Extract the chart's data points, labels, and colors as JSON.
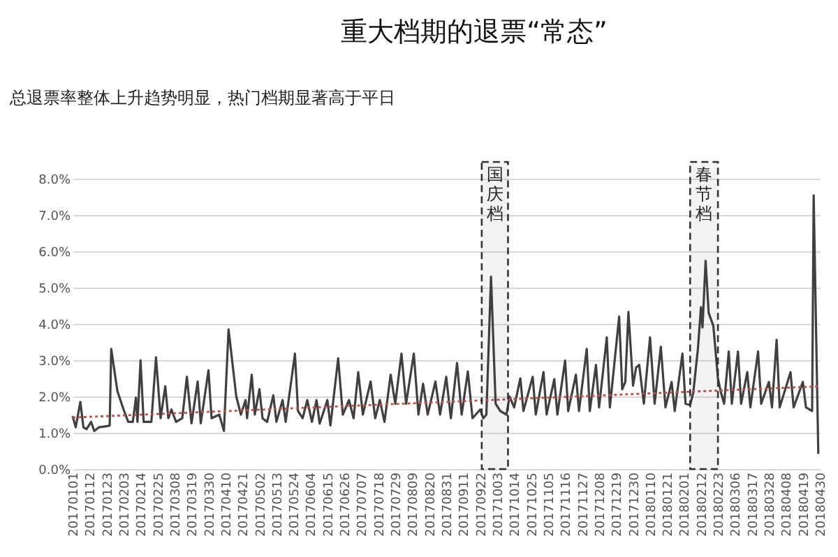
{
  "chart_data": {
    "type": "line",
    "title": "重大档期的退票“常态”",
    "subtitle": "总退票率整体上升趋势明显，热门档期显著高于平日",
    "xlim": [
      "2017-01-01",
      "2018-04-30"
    ],
    "xticks": [
      {
        "value": "2017-01-01",
        "label": "20170101"
      },
      {
        "value": "2017-01-12",
        "label": "20170112"
      },
      {
        "value": "2017-01-23",
        "label": "20170123"
      },
      {
        "value": "2017-02-03",
        "label": "20170203"
      },
      {
        "value": "2017-02-14",
        "label": "20170214"
      },
      {
        "value": "2017-02-25",
        "label": "20170225"
      },
      {
        "value": "2017-03-08",
        "label": "20170308"
      },
      {
        "value": "2017-03-19",
        "label": "20170319"
      },
      {
        "value": "2017-03-30",
        "label": "20170330"
      },
      {
        "value": "2017-04-10",
        "label": "20170410"
      },
      {
        "value": "2017-04-21",
        "label": "20170421"
      },
      {
        "value": "2017-05-02",
        "label": "20170502"
      },
      {
        "value": "2017-05-13",
        "label": "20170513"
      },
      {
        "value": "2017-05-24",
        "label": "20170524"
      },
      {
        "value": "2017-06-04",
        "label": "20170604"
      },
      {
        "value": "2017-06-15",
        "label": "20170615"
      },
      {
        "value": "2017-06-26",
        "label": "20170626"
      },
      {
        "value": "2017-07-07",
        "label": "20170707"
      },
      {
        "value": "2017-07-18",
        "label": "20170718"
      },
      {
        "value": "2017-07-29",
        "label": "20170729"
      },
      {
        "value": "2017-08-09",
        "label": "20170809"
      },
      {
        "value": "2017-08-20",
        "label": "20170820"
      },
      {
        "value": "2017-08-31",
        "label": "20170831"
      },
      {
        "value": "2017-09-11",
        "label": "20170911"
      },
      {
        "value": "2017-09-22",
        "label": "20170922"
      },
      {
        "value": "2017-10-03",
        "label": "20171003"
      },
      {
        "value": "2017-10-14",
        "label": "20171014"
      },
      {
        "value": "2017-10-25",
        "label": "20171025"
      },
      {
        "value": "2017-11-05",
        "label": "20171105"
      },
      {
        "value": "2017-11-16",
        "label": "20171116"
      },
      {
        "value": "2017-11-27",
        "label": "20171127"
      },
      {
        "value": "2017-12-08",
        "label": "20171208"
      },
      {
        "value": "2017-12-19",
        "label": "20171219"
      },
      {
        "value": "2017-12-30",
        "label": "20171230"
      },
      {
        "value": "2018-01-10",
        "label": "20180110"
      },
      {
        "value": "2018-01-21",
        "label": "20180121"
      },
      {
        "value": "2018-02-01",
        "label": "20180201"
      },
      {
        "value": "2018-02-12",
        "label": "20180212"
      },
      {
        "value": "2018-02-23",
        "label": "20180223"
      },
      {
        "value": "2018-03-06",
        "label": "20180306"
      },
      {
        "value": "2018-03-17",
        "label": "20180317"
      },
      {
        "value": "2018-03-28",
        "label": "20180328"
      },
      {
        "value": "2018-04-08",
        "label": "20180408"
      },
      {
        "value": "2018-04-19",
        "label": "20180419"
      },
      {
        "value": "2018-04-30",
        "label": "20180430"
      }
    ],
    "ylim": [
      0,
      8
    ],
    "yticks": [
      {
        "value": 0,
        "label": "0.0%"
      },
      {
        "value": 1,
        "label": "1.0%"
      },
      {
        "value": 2,
        "label": "2.0%"
      },
      {
        "value": 3,
        "label": "3.0%"
      },
      {
        "value": 4,
        "label": "4.0%"
      },
      {
        "value": 5,
        "label": "5.0%"
      },
      {
        "value": 6,
        "label": "6.0%"
      },
      {
        "value": 7,
        "label": "7.0%"
      },
      {
        "value": 8,
        "label": "8.0%"
      }
    ],
    "grid": "y",
    "series": [
      {
        "color": "#404040",
        "x": [
          "2017-01-01",
          "2017-01-03",
          "2017-01-06",
          "2017-01-08",
          "2017-01-10",
          "2017-01-13",
          "2017-01-15",
          "2017-01-18",
          "2017-01-23",
          "2017-01-25",
          "2017-01-26",
          "2017-01-30",
          "2017-02-03",
          "2017-02-06",
          "2017-02-09",
          "2017-02-11",
          "2017-02-12",
          "2017-02-14",
          "2017-02-16",
          "2017-02-21",
          "2017-02-24",
          "2017-02-27",
          "2017-03-02",
          "2017-03-04",
          "2017-03-06",
          "2017-03-09",
          "2017-03-13",
          "2017-03-16",
          "2017-03-19",
          "2017-03-23",
          "2017-03-25",
          "2017-03-30",
          "2017-04-01",
          "2017-04-06",
          "2017-04-09",
          "2017-04-12",
          "2017-04-17",
          "2017-04-20",
          "2017-04-23",
          "2017-04-24",
          "2017-04-27",
          "2017-04-29",
          "2017-05-02",
          "2017-05-04",
          "2017-05-07",
          "2017-05-11",
          "2017-05-13",
          "2017-05-17",
          "2017-05-19",
          "2017-05-25",
          "2017-05-27",
          "2017-05-30",
          "2017-06-02",
          "2017-06-05",
          "2017-06-08",
          "2017-06-10",
          "2017-06-15",
          "2017-06-17",
          "2017-06-22",
          "2017-06-25",
          "2017-06-29",
          "2017-07-02",
          "2017-07-05",
          "2017-07-08",
          "2017-07-13",
          "2017-07-16",
          "2017-07-19",
          "2017-07-22",
          "2017-07-26",
          "2017-07-29",
          "2017-08-02",
          "2017-08-05",
          "2017-08-10",
          "2017-08-13",
          "2017-08-16",
          "2017-08-19",
          "2017-08-24",
          "2017-08-27",
          "2017-08-31",
          "2017-09-03",
          "2017-09-07",
          "2017-09-10",
          "2017-09-14",
          "2017-09-17",
          "2017-09-22",
          "2017-09-24",
          "2017-09-26",
          "2017-09-29",
          "2017-10-02",
          "2017-10-05",
          "2017-10-09",
          "2017-10-11",
          "2017-10-14",
          "2017-10-18",
          "2017-10-20",
          "2017-10-26",
          "2017-10-28",
          "2017-11-02",
          "2017-11-04",
          "2017-11-09",
          "2017-11-11",
          "2017-11-16",
          "2017-11-18",
          "2017-11-23",
          "2017-11-25",
          "2017-11-30",
          "2017-12-02",
          "2017-12-06",
          "2017-12-08",
          "2017-12-13",
          "2017-12-15",
          "2017-12-21",
          "2017-12-23",
          "2017-12-25",
          "2017-12-27",
          "2017-12-30",
          "2018-01-01",
          "2018-01-03",
          "2018-01-06",
          "2018-01-10",
          "2018-01-13",
          "2018-01-17",
          "2018-01-20",
          "2018-01-24",
          "2018-01-26",
          "2018-01-31",
          "2018-02-02",
          "2018-02-05",
          "2018-02-07",
          "2018-02-10",
          "2018-02-12",
          "2018-02-13",
          "2018-02-15",
          "2018-02-17",
          "2018-02-20",
          "2018-02-23",
          "2018-02-25",
          "2018-02-27",
          "2018-03-02",
          "2018-03-04",
          "2018-03-08",
          "2018-03-10",
          "2018-03-14",
          "2018-03-16",
          "2018-03-21",
          "2018-03-23",
          "2018-03-28",
          "2018-03-30",
          "2018-04-02",
          "2018-04-04",
          "2018-04-11",
          "2018-04-13",
          "2018-04-19",
          "2018-04-21",
          "2018-04-25",
          "2018-04-26",
          "2018-04-29"
        ],
        "values": [
          1.46,
          1.15,
          1.85,
          1.15,
          1.1,
          1.3,
          1.05,
          1.15,
          1.18,
          1.2,
          3.31,
          2.15,
          1.64,
          1.3,
          1.3,
          1.97,
          1.3,
          3.0,
          1.3,
          1.3,
          3.08,
          1.4,
          2.28,
          1.4,
          1.64,
          1.3,
          1.4,
          2.54,
          1.26,
          2.41,
          1.26,
          2.72,
          1.4,
          1.5,
          1.05,
          3.85,
          2.0,
          1.5,
          1.9,
          1.4,
          2.6,
          1.5,
          2.2,
          1.4,
          1.3,
          2.03,
          1.3,
          1.9,
          1.3,
          3.18,
          1.6,
          1.4,
          1.9,
          1.3,
          1.9,
          1.25,
          1.9,
          1.2,
          3.05,
          1.5,
          1.9,
          1.4,
          2.67,
          1.5,
          2.41,
          1.4,
          1.9,
          1.3,
          2.6,
          1.8,
          3.18,
          1.8,
          3.18,
          1.5,
          2.35,
          1.5,
          2.41,
          1.5,
          2.54,
          1.4,
          2.92,
          1.5,
          2.69,
          1.4,
          1.64,
          1.4,
          1.5,
          5.3,
          1.8,
          1.6,
          1.5,
          2.0,
          1.7,
          2.5,
          1.6,
          2.54,
          1.5,
          2.67,
          1.5,
          2.48,
          1.5,
          2.99,
          1.6,
          2.6,
          1.6,
          3.31,
          1.6,
          2.87,
          1.7,
          3.63,
          1.7,
          4.2,
          2.2,
          2.4,
          4.33,
          2.3,
          2.8,
          2.87,
          1.8,
          3.63,
          1.8,
          3.37,
          1.7,
          2.4,
          1.6,
          3.18,
          1.8,
          1.77,
          2.1,
          3.3,
          4.46,
          3.9,
          5.74,
          4.3,
          3.95,
          2.5,
          2.1,
          1.8,
          3.24,
          1.8,
          3.24,
          1.8,
          2.67,
          1.7,
          3.24,
          1.8,
          2.4,
          1.7,
          3.56,
          1.7,
          2.67,
          1.7,
          2.4,
          1.7,
          1.6,
          7.54,
          0.42
        ]
      },
      {
        "type": "line",
        "color": "#c0504d",
        "line_style": "dotted",
        "x": [
          "2017-01-01",
          "2018-04-30"
        ],
        "values": [
          1.42,
          2.28
        ]
      }
    ],
    "bands": [
      {
        "axis": "x",
        "from": "2017-09-23",
        "to": "2017-10-10",
        "label": "国庆档",
        "color": "#333333"
      },
      {
        "axis": "x",
        "from": "2018-02-05",
        "to": "2018-02-23",
        "label": "春节档",
        "color": "#333333"
      }
    ]
  }
}
